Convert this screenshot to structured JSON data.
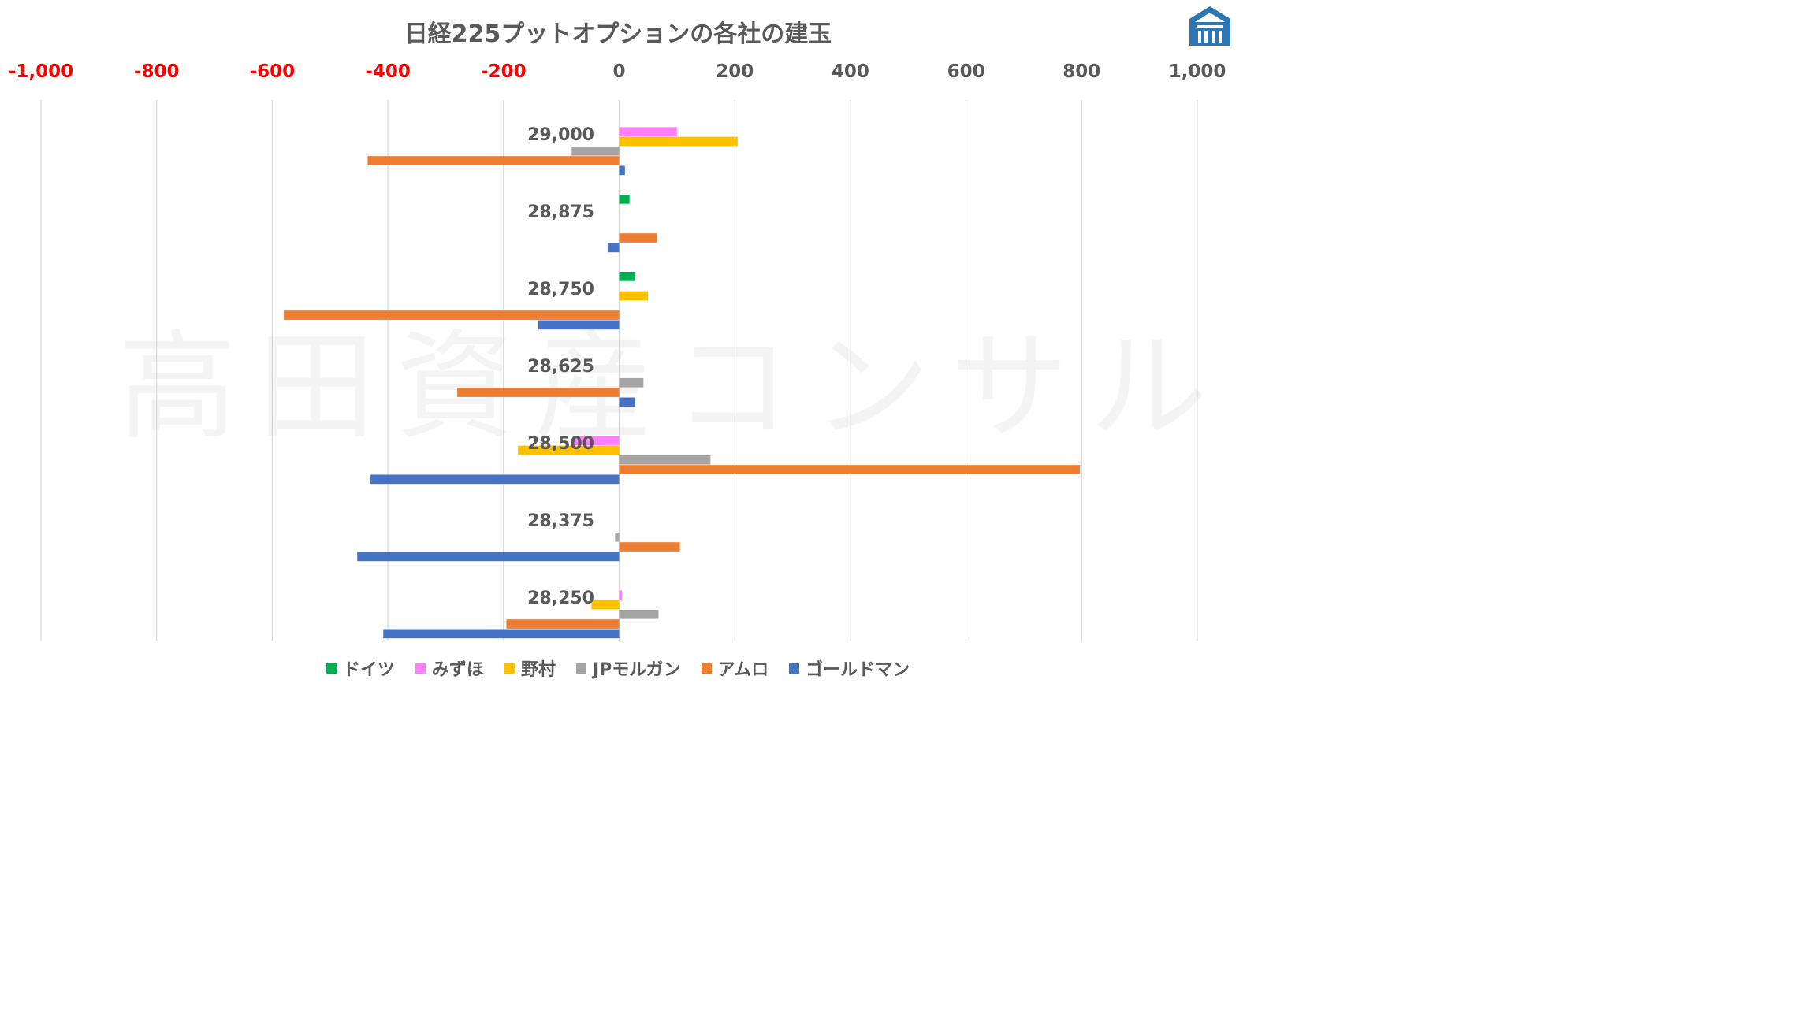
{
  "title": "日経225プットオプションの各社の建玉",
  "watermark": "高田資産コンサル",
  "colors": {
    "grid": "#d9d9d9",
    "negative_tick": "#ff0000",
    "positive_tick": "#595959",
    "category_label": "#595959",
    "logo": "#2e75b6"
  },
  "logo": {
    "name": "company-logo"
  },
  "chart_data": {
    "type": "bar",
    "orientation": "horizontal",
    "title": "日経225プットオプションの各社の建玉",
    "xlim": [
      -1000,
      1000
    ],
    "x_ticks": [
      -1000,
      -800,
      -600,
      -400,
      -200,
      0,
      200,
      400,
      600,
      800,
      1000
    ],
    "x_tick_labels": [
      "-1,000",
      "-800",
      "-600",
      "-400",
      "-200",
      "0",
      "200",
      "400",
      "600",
      "800",
      "1,000"
    ],
    "grid": true,
    "legend_position": "bottom",
    "categories": [
      "29,000",
      "28,875",
      "28,750",
      "28,625",
      "28,500",
      "28,375",
      "28,250"
    ],
    "series": [
      {
        "name": "ドイツ",
        "color": "#00b050",
        "values": [
          0,
          18,
          28,
          0,
          0,
          0,
          0
        ]
      },
      {
        "name": "みずほ",
        "color": "#ff80ff",
        "values": [
          100,
          0,
          0,
          0,
          -80,
          0,
          5
        ]
      },
      {
        "name": "野村",
        "color": "#ffc000",
        "values": [
          205,
          0,
          50,
          0,
          -175,
          0,
          -48
        ]
      },
      {
        "name": "JPモルガン",
        "color": "#a5a5a5",
        "values": [
          -82,
          0,
          0,
          42,
          158,
          -7,
          68
        ]
      },
      {
        "name": "アムロ",
        "color": "#ed7d31",
        "values": [
          -435,
          65,
          -580,
          -280,
          797,
          105,
          -195
        ]
      },
      {
        "name": "ゴールドマン",
        "color": "#4472c4",
        "values": [
          10,
          -20,
          -140,
          28,
          -430,
          -453,
          -408
        ]
      }
    ]
  }
}
